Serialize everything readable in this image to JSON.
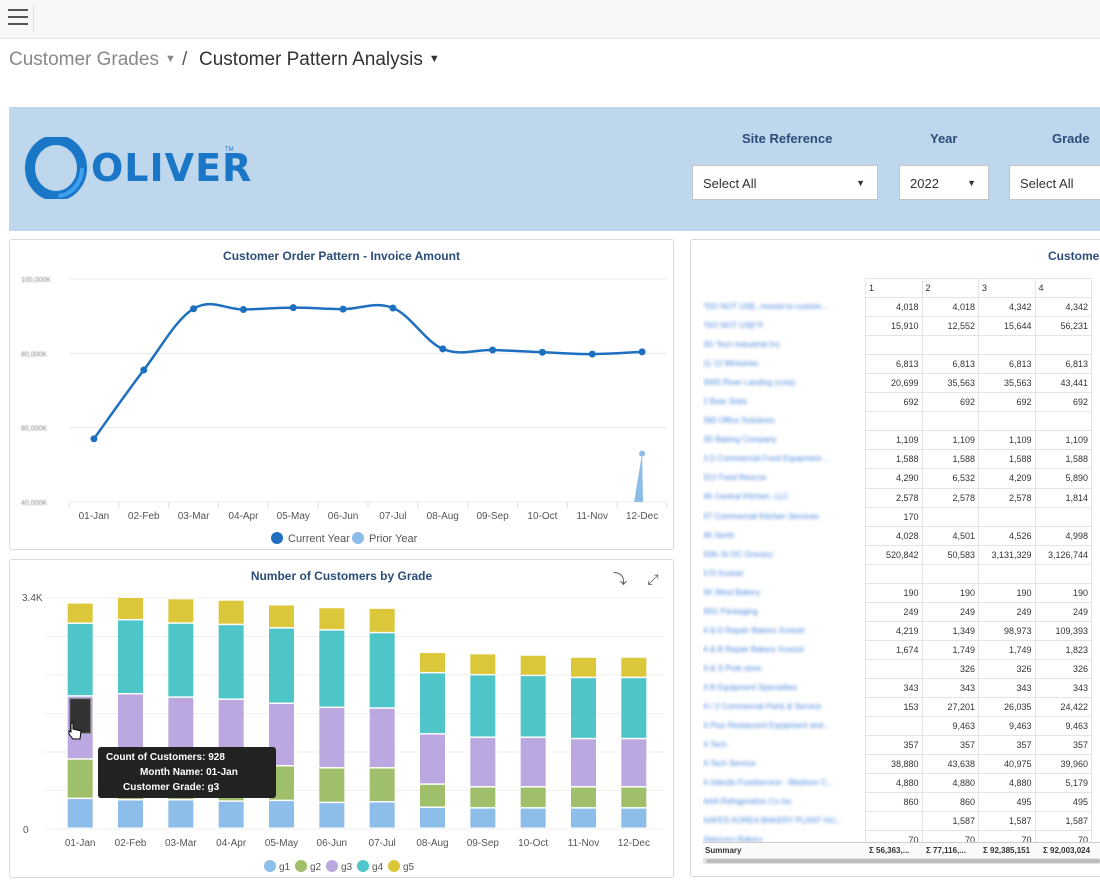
{
  "breadcrumb": {
    "parent": "Customer Grades",
    "separator": "/",
    "current": "Customer Pattern Analysis"
  },
  "banner": {
    "logo_text": "OLIVER",
    "logo_tm": "TM",
    "filters": [
      {
        "label": "Site Reference",
        "value": "Select All"
      },
      {
        "label": "Year",
        "value": "2022"
      },
      {
        "label": "Grade",
        "value": "Select All"
      }
    ]
  },
  "line_panel": {
    "title": "Customer Order Pattern - Invoice Amount",
    "legend": [
      "Current Year",
      "Prior Year"
    ],
    "colors": {
      "current": "#1e6fbf",
      "prior": "#8bbde8"
    }
  },
  "bar_panel": {
    "title": "Number of Customers by Grade",
    "y_top_label": "3.4K",
    "y_zero_label": "0",
    "icons": [
      "drill-down-icon",
      "expand-icon"
    ],
    "colors": {
      "g1": "#8dbde9",
      "g2": "#9fbf6b",
      "g3": "#bba8e0",
      "g4": "#4ec5c8",
      "g5": "#dcc73a"
    },
    "tooltip": {
      "line1_label": "Count of Customers:",
      "line1_value": "928",
      "line2_label": "Month Name:",
      "line2_value": "01-Jan",
      "line3_label": "Customer Grade:",
      "line3_value": "g3"
    }
  },
  "chart_data": [
    {
      "type": "line",
      "title": "Customer Order Pattern - Invoice Amount",
      "categories": [
        "01-Jan",
        "02-Feb",
        "03-Mar",
        "04-Apr",
        "05-May",
        "06-Jun",
        "07-Jul",
        "08-Aug",
        "09-Sep",
        "10-Oct",
        "11-Nov",
        "12-Dec"
      ],
      "ytick_labels": [
        "100,000K",
        "80,000K",
        "60,000K",
        "40,000K"
      ],
      "ylim": [
        40000,
        100000
      ],
      "series": [
        {
          "name": "Current Year",
          "values": [
            57000,
            75500,
            92000,
            91800,
            92300,
            91900,
            92200,
            81200,
            80900,
            80300,
            79800,
            80400
          ]
        },
        {
          "name": "Prior Year",
          "values": [
            null,
            null,
            null,
            null,
            null,
            null,
            null,
            null,
            null,
            null,
            null,
            53000
          ]
        }
      ],
      "legend": "bottom"
    },
    {
      "type": "bar",
      "stacked": true,
      "title": "Number of Customers by Grade",
      "categories": [
        "01-Jan",
        "02-Feb",
        "03-Mar",
        "04-Apr",
        "05-May",
        "06-Jun",
        "07-Jul",
        "08-Aug",
        "09-Sep",
        "10-Oct",
        "11-Nov",
        "12-Dec"
      ],
      "ylim": [
        0,
        3400
      ],
      "series": [
        {
          "name": "g1",
          "values": [
            440,
            420,
            420,
            400,
            410,
            380,
            390,
            310,
            300,
            300,
            300,
            300
          ]
        },
        {
          "name": "g2",
          "values": [
            580,
            560,
            550,
            550,
            510,
            510,
            500,
            340,
            310,
            310,
            310,
            310
          ]
        },
        {
          "name": "g3",
          "values": [
            928,
            1000,
            960,
            950,
            920,
            890,
            880,
            740,
            730,
            730,
            710,
            710
          ]
        },
        {
          "name": "g4",
          "values": [
            1070,
            1090,
            1090,
            1100,
            1110,
            1140,
            1110,
            900,
            920,
            910,
            900,
            900
          ]
        },
        {
          "name": "g5",
          "values": [
            300,
            330,
            360,
            360,
            340,
            330,
            360,
            300,
            310,
            300,
            300,
            300
          ]
        }
      ],
      "legend": "bottom"
    }
  ],
  "table": {
    "title": "Custome",
    "column_headers": [
      "1",
      "2",
      "3",
      "4"
    ],
    "row_names": [
      "*DO NOT USE, moved to custom...",
      "*DO NOT USE*F",
      "3G Tech Industrial Inc",
      "11 12 Ministries",
      "3000 River Landing (corp)",
      "2 Bear Stats",
      "360 Office Solutions",
      "3D Baking Company",
      "3 D Commercial Food Equipment ...",
      "312 Food Rescue",
      "4K Central Kitchen, LLC",
      "4T Commercial Kitchen Services",
      "4K North",
      "50th St DC Grocery",
      "570 Kosher",
      "5K West Bakery",
      "90G Packaging",
      "A & D Repair Bakers Xcessit",
      "A & B Repair Bakers Xcessit",
      "A & S Pork store",
      "A B Equipment Specialties",
      "A / 2 Commercial Parts & Service",
      "A Plus Restaurant Equipment and...",
      "A Tech",
      "A Tech Service",
      "A Islands Foodservice - Madison C...",
      "AAA Refrigeration Co Inc",
      "AAFES KOREA BAKERY PLANT HU...",
      "Abercorn Bakery"
    ],
    "rows": [
      [
        "4,018",
        "4,018",
        "4,342",
        "4,342"
      ],
      [
        "15,910",
        "12,552",
        "15,644",
        "56,231"
      ],
      [
        "",
        "",
        "",
        ""
      ],
      [
        "6,813",
        "6,813",
        "6,813",
        "6,813"
      ],
      [
        "20,699",
        "35,563",
        "35,563",
        "43,441"
      ],
      [
        "692",
        "692",
        "692",
        "692"
      ],
      [
        "",
        "",
        "",
        ""
      ],
      [
        "1,109",
        "1,109",
        "1,109",
        "1,109"
      ],
      [
        "1,588",
        "1,588",
        "1,588",
        "1,588"
      ],
      [
        "4,290",
        "6,532",
        "4,209",
        "5,890"
      ],
      [
        "2,578",
        "2,578",
        "2,578",
        "1,814"
      ],
      [
        "170",
        "",
        "",
        ""
      ],
      [
        "4,028",
        "4,501",
        "4,526",
        "4,998"
      ],
      [
        "520,842",
        "50,583",
        "3,131,329",
        "3,126,744"
      ],
      [
        "",
        "",
        "",
        ""
      ],
      [
        "190",
        "190",
        "190",
        "190"
      ],
      [
        "249",
        "249",
        "249",
        "249"
      ],
      [
        "4,219",
        "1,349",
        "98,973",
        "109,393"
      ],
      [
        "1,674",
        "1,749",
        "1,749",
        "1,823"
      ],
      [
        "",
        "326",
        "326",
        "326"
      ],
      [
        "343",
        "343",
        "343",
        "343"
      ],
      [
        "153",
        "27,201",
        "26,035",
        "24,422"
      ],
      [
        "",
        "9,463",
        "9,463",
        "9,463"
      ],
      [
        "357",
        "357",
        "357",
        "357"
      ],
      [
        "38,880",
        "43,638",
        "40,975",
        "39,960"
      ],
      [
        "4,880",
        "4,880",
        "4,880",
        "5,179"
      ],
      [
        "860",
        "860",
        "495",
        "495"
      ],
      [
        "",
        "1,587",
        "1,587",
        "1,587"
      ],
      [
        "70",
        "70",
        "70",
        "70"
      ]
    ],
    "summary_label": "Summary",
    "summary_values": [
      "Σ 56,363,...",
      "Σ 77,116,...",
      "Σ 92,385,151",
      "Σ 92,003,024"
    ]
  }
}
